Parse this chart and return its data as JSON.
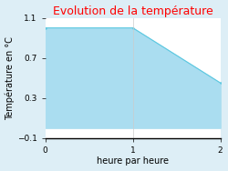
{
  "title": "Evolution de la température",
  "title_color": "#ff0000",
  "xlabel": "heure par heure",
  "ylabel": "Température en °C",
  "xlim": [
    0,
    2
  ],
  "ylim": [
    -0.1,
    1.1
  ],
  "yticks": [
    -0.1,
    0.3,
    0.7,
    1.1
  ],
  "xticks": [
    0,
    1,
    2
  ],
  "x": [
    0,
    1,
    2
  ],
  "y": [
    1.0,
    1.0,
    0.45
  ],
  "line_color": "#5bc8e0",
  "fill_color": "#aaddf0",
  "fill_alpha": 1.0,
  "plot_bg_color": "#ffffff",
  "fig_bg_color": "#ddeef6",
  "line_width": 0.8,
  "title_fontsize": 9,
  "axis_label_fontsize": 7,
  "tick_fontsize": 6.5
}
